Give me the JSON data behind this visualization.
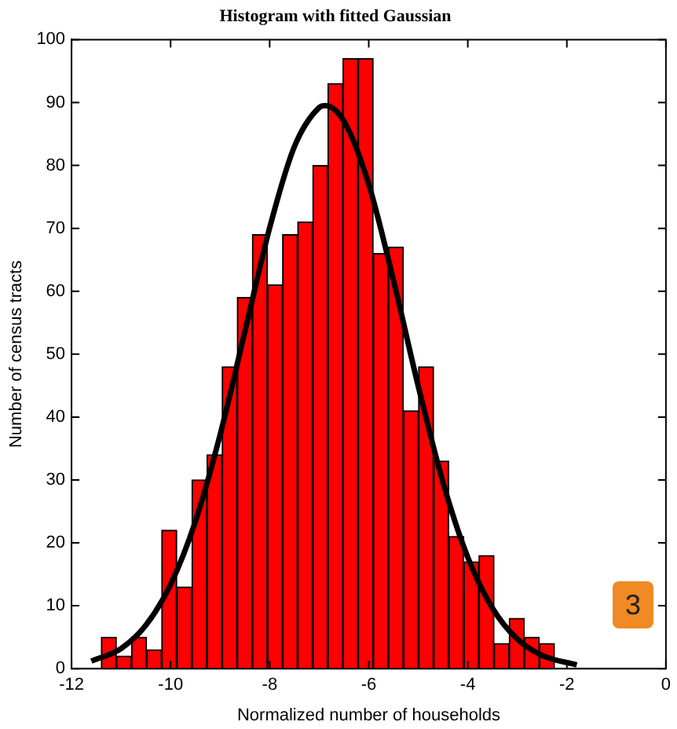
{
  "chart_data": {
    "type": "histogram",
    "title": "Histogram with fitted Gaussian",
    "xlabel": "Normalized number of households",
    "ylabel": "Number of census tracts",
    "xlim": [
      -12,
      0
    ],
    "xticks": [
      -12,
      -10,
      -8,
      -6,
      -4,
      -2,
      0
    ],
    "ylim": [
      0,
      100
    ],
    "yticks": [
      0,
      10,
      20,
      30,
      40,
      50,
      60,
      70,
      80,
      90,
      100
    ],
    "grid": false,
    "legend": false,
    "series": [
      {
        "type": "histogram",
        "color": "#ff0000",
        "bins": [
          -11.4,
          -11.095,
          -10.79,
          -10.485,
          -10.18,
          -9.875,
          -9.57,
          -9.265,
          -8.96,
          -8.655,
          -8.35,
          -8.045,
          -7.74,
          -7.435,
          -7.13,
          -6.825,
          -6.52,
          -6.215,
          -5.91,
          -5.605,
          -5.3,
          -4.995,
          -4.69,
          -4.385,
          -4.08,
          -3.775,
          -3.47,
          -3.165,
          -2.86,
          -2.555,
          -2.25
        ],
        "values": [
          5,
          2,
          5,
          3,
          22,
          13,
          30,
          34,
          48,
          59,
          69,
          61,
          69,
          71,
          80,
          93,
          97,
          97,
          66,
          67,
          41,
          48,
          33,
          21,
          17,
          18,
          4,
          8,
          5,
          4
        ]
      },
      {
        "type": "line",
        "color": "#000000",
        "marker": "none",
        "x": [
          -11.6,
          -11,
          -10.5,
          -10,
          -9.5,
          -9,
          -8.5,
          -8,
          -7.5,
          -7,
          -6.88,
          -6.5,
          -6,
          -5.5,
          -5,
          -4.5,
          -4,
          -3.5,
          -3,
          -2.5,
          -1.8
        ],
        "values": [
          1.2,
          3.2,
          6.9,
          13.4,
          23.4,
          37.2,
          53.6,
          70.1,
          83.0,
          89.2,
          89.5,
          87.0,
          77.0,
          61.7,
          44.9,
          29.6,
          17.7,
          9.6,
          4.7,
          2.1,
          0.6
        ]
      }
    ],
    "annotations": [
      "3"
    ]
  }
}
